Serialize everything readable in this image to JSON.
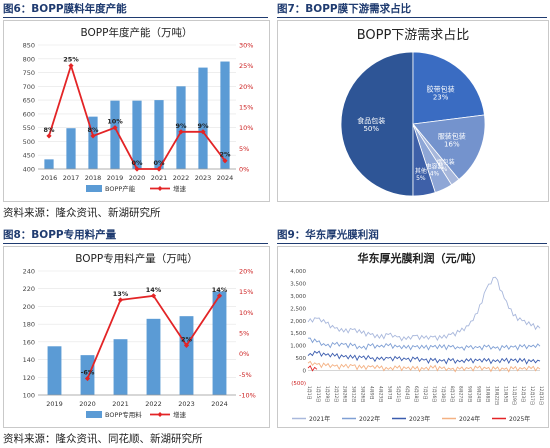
{
  "figures": [
    {
      "header": "图6：BOPP膜料年度产能",
      "chart_data": {
        "type": "bar",
        "title": "BOPP年度产能（万吨）",
        "categories": [
          "2016",
          "2017",
          "2018",
          "2019",
          "2020",
          "2021",
          "2022",
          "2023",
          "2024"
        ],
        "series": [
          {
            "name": "BOPP产能",
            "type": "bar",
            "axis": "left",
            "values": [
              435,
              548,
              590,
              648,
              648,
              650,
              700,
              768,
              790
            ]
          },
          {
            "name": "增速",
            "type": "line",
            "axis": "right",
            "values": [
              8,
              25,
              8,
              10,
              0,
              0,
              9,
              9,
              2
            ],
            "labels": [
              "8%",
              "25%",
              "8%",
              "10%",
              "0%",
              "0%",
              "9%",
              "9%",
              "2%"
            ]
          }
        ],
        "left_ylim": [
          400,
          850
        ],
        "left_ticks": [
          "400",
          "450",
          "500",
          "550",
          "600",
          "650",
          "700",
          "750",
          "800",
          "850"
        ],
        "right_ylim": [
          0,
          30
        ],
        "right_ticks": [
          "0%",
          "5%",
          "10%",
          "15%",
          "20%",
          "25%",
          "30%"
        ],
        "colors": {
          "bar": "#5b9bd5",
          "line": "#e32426"
        },
        "legend": "bottom"
      }
    },
    {
      "header": "图7：BOPP膜下游需求占比",
      "chart_data": {
        "type": "pie",
        "title": "BOPP下游需求占比",
        "slices": [
          {
            "label": "食品包装",
            "value": 50,
            "pct": "50%",
            "color": "#2e5596"
          },
          {
            "label": "胶带包装",
            "value": 23,
            "pct": "23%",
            "color": "#3a6cc2"
          },
          {
            "label": "服装包装",
            "value": 16,
            "pct": "16%",
            "color": "#7493cd"
          },
          {
            "label": "香烟包装",
            "value": 2,
            "pct": "2%",
            "color": "#a7b7db"
          },
          {
            "label": "电容器",
            "value": 4,
            "pct": "4%",
            "color": "#8ea6d6"
          },
          {
            "label": "其他",
            "value": 5,
            "pct": "5%",
            "color": "#3e60a8"
          }
        ]
      }
    },
    {
      "header": "图8：BOPP专用料产量",
      "chart_data": {
        "type": "bar",
        "title": "BOPP专用料产量（万吨）",
        "categories": [
          "2019",
          "2020",
          "2021",
          "2022",
          "2023",
          "2024"
        ],
        "series": [
          {
            "name": "BOPP专用料",
            "type": "bar",
            "axis": "left",
            "values": [
              155,
              145,
              163,
              186,
              189,
              217
            ]
          },
          {
            "name": "增速",
            "type": "line",
            "axis": "right",
            "values": [
              null,
              -6,
              13,
              14,
              2,
              14
            ],
            "labels": [
              "",
              "-6%",
              "13%",
              "14%",
              "2%",
              "14%"
            ]
          }
        ],
        "left_ylim": [
          100,
          240
        ],
        "left_ticks": [
          "100",
          "120",
          "140",
          "160",
          "180",
          "200",
          "220",
          "240"
        ],
        "right_ylim": [
          -10,
          20
        ],
        "right_ticks": [
          "-10%",
          "-5%",
          "0%",
          "5%",
          "10%",
          "15%",
          "20%"
        ],
        "colors": {
          "bar": "#5b9bd5",
          "line": "#e32426"
        },
        "legend": "bottom"
      }
    },
    {
      "header": "图9：华东厚光膜利润",
      "chart_data": {
        "type": "line",
        "title": "华东厚光膜利润（元/吨）",
        "ylim": [
          -500,
          4000
        ],
        "yticks": [
          "(500)",
          "0",
          "500",
          "1,000",
          "1,500",
          "2,000",
          "2,500",
          "3,000",
          "3,500",
          "4,000"
        ],
        "xticks": [
          "1月1日",
          "1月15日",
          "1月29日",
          "2月12日",
          "2月26日",
          "3月12日",
          "3月26日",
          "4月9日",
          "4月23日",
          "5月7日",
          "5月21日",
          "6月4日",
          "6月18日",
          "7月2日",
          "7月16日",
          "7月30日",
          "8月13日",
          "8月27日",
          "9月10日",
          "9月24日",
          "10月8日",
          "10月22日",
          "11月5日",
          "11月19日",
          "12月3日",
          "12月17日",
          "12月31日"
        ],
        "series": [
          {
            "name": "2021年",
            "color": "#a9b8dc",
            "values": [
              1950,
              2100,
              1900,
              1700,
              1550,
              1650,
              1500,
              1450,
              1300,
              1450,
              1350,
              1250,
              1400,
              1300,
              1350,
              1300,
              1450,
              1550,
              1800,
              2300,
              3300,
              3750,
              2900,
              2200,
              2000,
              1800,
              1700
            ]
          },
          {
            "name": "2022年",
            "color": "#7f9fd4",
            "values": [
              1300,
              1150,
              1000,
              1050,
              1050,
              1000,
              900,
              1000,
              950,
              1000,
              950,
              900,
              950,
              900,
              950,
              920,
              950,
              900,
              930,
              920,
              950,
              900,
              920,
              940,
              950,
              960,
              980
            ]
          },
          {
            "name": "2023年",
            "color": "#3b5cae",
            "values": [
              600,
              700,
              620,
              580,
              550,
              500,
              520,
              480,
              450,
              500,
              480,
              450,
              460,
              420,
              400,
              380,
              400,
              350,
              380,
              400,
              380,
              360,
              380,
              400,
              370,
              360,
              380
            ]
          },
          {
            "name": "2024年",
            "color": "#f4b183",
            "values": [
              300,
              250,
              200,
              180,
              150,
              200,
              100,
              150,
              100,
              50,
              100,
              80,
              60,
              50,
              100,
              80,
              50,
              60,
              80,
              100,
              80,
              60,
              50,
              70,
              60,
              80,
              60
            ]
          },
          {
            "name": "2025年",
            "color": "#e32426",
            "values": [
              100,
              50
            ]
          }
        ],
        "legend": "bottom"
      }
    }
  ],
  "sources": [
    "资料来源：隆众资讯、新湖研究所",
    "资料来源：隆众资讯、同花顺、新湖研究所"
  ]
}
